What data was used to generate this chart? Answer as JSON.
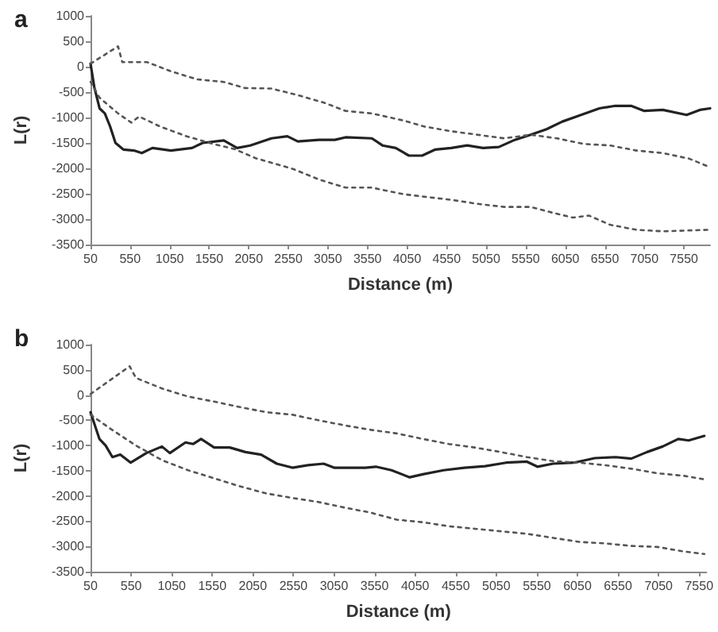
{
  "chart_data": [
    {
      "type": "line",
      "title": "a",
      "xlabel": "Distance (m)",
      "ylabel": "L(r)",
      "marker": "none",
      "grid": false,
      "xlim": [
        50,
        7880
      ],
      "xticks": [
        50,
        550,
        1050,
        1550,
        2050,
        2550,
        3050,
        3550,
        4050,
        4550,
        5050,
        5550,
        6050,
        6550,
        7050,
        7550
      ],
      "ylim": [
        -3500,
        1000
      ],
      "yticks": [
        -3500,
        -3000,
        -2500,
        -2000,
        -1500,
        -1000,
        -500,
        0,
        500,
        1000
      ],
      "series": [
        {
          "color": "#222222",
          "line_style": "solid",
          "x": [
            50,
            97,
            164,
            231,
            298,
            365,
            464,
            598,
            698,
            832,
            1066,
            1333,
            1467,
            1734,
            1902,
            2069,
            2336,
            2537,
            2670,
            2938,
            3138,
            3272,
            3606,
            3740,
            3907,
            4074,
            4241,
            4408,
            4609,
            4810,
            5010,
            5211,
            5412,
            5612,
            5813,
            6013,
            6214,
            6481,
            6682,
            6882,
            7049,
            7283,
            7584,
            7751,
            7880
          ],
          "values": [
            60,
            -400,
            -820,
            -920,
            -1180,
            -1500,
            -1630,
            -1650,
            -1700,
            -1600,
            -1650,
            -1600,
            -1500,
            -1450,
            -1600,
            -1550,
            -1410,
            -1370,
            -1470,
            -1440,
            -1440,
            -1390,
            -1410,
            -1550,
            -1600,
            -1750,
            -1750,
            -1630,
            -1600,
            -1550,
            -1600,
            -1580,
            -1440,
            -1340,
            -1230,
            -1080,
            -970,
            -820,
            -770,
            -770,
            -870,
            -850,
            -950,
            -850,
            -820
          ]
        },
        {
          "color": "#555555",
          "line_style": "dotted",
          "x": [
            50,
            398,
            451,
            765,
            1066,
            1400,
            1734,
            2002,
            2336,
            2670,
            3005,
            3272,
            3606,
            4007,
            4274,
            4609,
            4943,
            5278,
            5612,
            5947,
            6281,
            6615,
            6949,
            7283,
            7617,
            7851
          ],
          "values": [
            60,
            400,
            90,
            90,
            -90,
            -250,
            -300,
            -420,
            -430,
            -560,
            -710,
            -870,
            -920,
            -1060,
            -1180,
            -1270,
            -1340,
            -1410,
            -1340,
            -1410,
            -1520,
            -1550,
            -1650,
            -1700,
            -1810,
            -1960
          ]
        },
        {
          "color": "#555555",
          "line_style": "dotted",
          "x": [
            50,
            164,
            398,
            565,
            665,
            932,
            1266,
            1600,
            1868,
            2136,
            2604,
            2938,
            3272,
            3606,
            4007,
            4274,
            4609,
            4943,
            5278,
            5612,
            5880,
            6147,
            6348,
            6615,
            6949,
            7283,
            7851
          ],
          "values": [
            -300,
            -610,
            -920,
            -1100,
            -980,
            -1180,
            -1370,
            -1520,
            -1620,
            -1800,
            -2010,
            -2220,
            -2380,
            -2380,
            -2510,
            -2560,
            -2620,
            -2700,
            -2760,
            -2760,
            -2870,
            -2970,
            -2930,
            -3110,
            -3210,
            -3240,
            -3210
          ]
        }
      ]
    },
    {
      "type": "line",
      "title": "b",
      "xlabel": "Distance (m)",
      "ylabel": "L(r)",
      "marker": "none",
      "grid": false,
      "xlim": [
        50,
        7640
      ],
      "xticks": [
        50,
        550,
        1050,
        1550,
        2050,
        2550,
        3050,
        3550,
        4050,
        4550,
        5050,
        5550,
        6050,
        6550,
        7050,
        7550
      ],
      "ylim": [
        -3500,
        1000
      ],
      "yticks": [
        -3500,
        -3000,
        -2500,
        -2000,
        -1500,
        -1000,
        -500,
        0,
        500,
        1000
      ],
      "series": [
        {
          "color": "#222222",
          "line_style": "solid",
          "x": [
            50,
            159,
            236,
            320,
            416,
            545,
            738,
            930,
            1027,
            1220,
            1316,
            1412,
            1573,
            1766,
            1959,
            2152,
            2345,
            2537,
            2730,
            2923,
            3051,
            3244,
            3437,
            3566,
            3759,
            3983,
            4144,
            4401,
            4658,
            4914,
            5171,
            5428,
            5557,
            5749,
            6007,
            6264,
            6521,
            6714,
            6907,
            7100,
            7293,
            7421,
            7614
          ],
          "values": [
            -340,
            -870,
            -1000,
            -1230,
            -1180,
            -1340,
            -1150,
            -1020,
            -1150,
            -940,
            -970,
            -870,
            -1040,
            -1040,
            -1130,
            -1180,
            -1360,
            -1440,
            -1390,
            -1360,
            -1440,
            -1440,
            -1440,
            -1420,
            -1490,
            -1630,
            -1570,
            -1490,
            -1440,
            -1410,
            -1340,
            -1320,
            -1420,
            -1360,
            -1340,
            -1250,
            -1230,
            -1260,
            -1130,
            -1020,
            -870,
            -900,
            -810
          ]
        },
        {
          "color": "#555555",
          "line_style": "dotted",
          "x": [
            50,
            532,
            609,
            930,
            1252,
            1573,
            1894,
            2216,
            2537,
            2859,
            3180,
            3501,
            3823,
            4144,
            4465,
            4786,
            5108,
            5428,
            5750,
            6071,
            6392,
            6714,
            7035,
            7357,
            7614
          ],
          "values": [
            20,
            570,
            340,
            130,
            -30,
            -130,
            -240,
            -340,
            -390,
            -500,
            -600,
            -690,
            -760,
            -870,
            -970,
            -1040,
            -1130,
            -1230,
            -1310,
            -1340,
            -1390,
            -1460,
            -1550,
            -1600,
            -1670
          ]
        },
        {
          "color": "#555555",
          "line_style": "dotted",
          "x": [
            50,
            288,
            609,
            930,
            1252,
            1573,
            1894,
            2216,
            2537,
            2859,
            3180,
            3501,
            3823,
            4144,
            4465,
            4786,
            5108,
            5428,
            5750,
            6071,
            6392,
            6714,
            7035,
            7357,
            7614
          ],
          "values": [
            -390,
            -660,
            -1000,
            -1290,
            -1490,
            -1650,
            -1810,
            -1950,
            -2040,
            -2120,
            -2230,
            -2330,
            -2470,
            -2520,
            -2600,
            -2650,
            -2700,
            -2750,
            -2830,
            -2910,
            -2940,
            -2990,
            -3010,
            -3100,
            -3150
          ]
        }
      ]
    }
  ]
}
